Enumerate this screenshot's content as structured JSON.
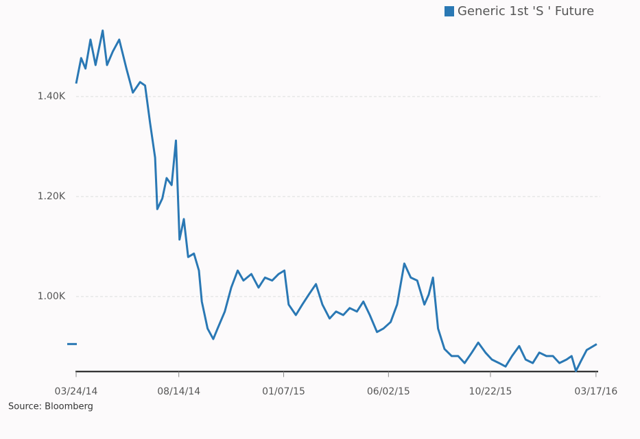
{
  "chart_data": {
    "type": "line",
    "source": "Source: Bloomberg",
    "x": [
      "2014-03-24",
      "2014-03-31",
      "2014-04-06",
      "2014-04-13",
      "2014-04-20",
      "2014-04-30",
      "2014-05-06",
      "2014-05-14",
      "2014-05-23",
      "2014-06-02",
      "2014-06-11",
      "2014-06-21",
      "2014-06-28",
      "2014-07-05",
      "2014-07-12",
      "2014-07-15",
      "2014-07-22",
      "2014-07-28",
      "2014-08-04",
      "2014-08-10",
      "2014-08-15",
      "2014-08-21",
      "2014-08-27",
      "2014-09-04",
      "2014-09-11",
      "2014-09-15",
      "2014-09-23",
      "2014-10-01",
      "2014-10-07",
      "2014-10-17",
      "2014-10-26",
      "2014-11-04",
      "2014-11-12",
      "2014-11-23",
      "2014-12-03",
      "2014-12-12",
      "2014-12-22",
      "2014-12-31",
      "2015-01-08",
      "2015-01-14",
      "2015-01-24",
      "2015-02-02",
      "2015-02-11",
      "2015-02-21",
      "2015-03-02",
      "2015-03-12",
      "2015-03-21",
      "2015-03-31",
      "2015-04-09",
      "2015-04-19",
      "2015-04-28",
      "2015-05-07",
      "2015-05-17",
      "2015-05-26",
      "2015-06-05",
      "2015-06-14",
      "2015-06-24",
      "2015-07-03",
      "2015-07-12",
      "2015-07-22",
      "2015-07-28",
      "2015-08-03",
      "2015-08-10",
      "2015-08-19",
      "2015-08-29",
      "2015-09-07",
      "2015-09-16",
      "2015-09-26",
      "2015-10-05",
      "2015-10-15",
      "2015-10-24",
      "2015-11-03",
      "2015-11-12",
      "2015-11-21",
      "2015-12-01",
      "2015-12-10",
      "2015-12-20",
      "2015-12-29",
      "2016-01-08",
      "2016-01-17",
      "2016-01-26",
      "2016-02-05",
      "2016-02-12",
      "2016-02-18",
      "2016-02-25",
      "2016-03-04",
      "2016-03-18"
    ],
    "series": [
      {
        "name": "Generic 1st 'S ' Future",
        "color": "#2a78b4",
        "values": [
          1426,
          1477,
          1456,
          1514,
          1463,
          1532,
          1463,
          1490,
          1514,
          1456,
          1408,
          1429,
          1422,
          1347,
          1278,
          1175,
          1196,
          1237,
          1223,
          1312,
          1114,
          1155,
          1079,
          1086,
          1052,
          990,
          936,
          915,
          936,
          970,
          1018,
          1052,
          1032,
          1045,
          1018,
          1038,
          1032,
          1045,
          1052,
          984,
          963,
          984,
          1004,
          1025,
          984,
          956,
          970,
          963,
          977,
          970,
          990,
          963,
          929,
          936,
          949,
          984,
          1066,
          1038,
          1032,
          984,
          1004,
          1038,
          936,
          895,
          881,
          881,
          867,
          888,
          908,
          888,
          874,
          867,
          860,
          881,
          901,
          874,
          867,
          888,
          881,
          881,
          867,
          874,
          881,
          851,
          871,
          893,
          905
        ]
      }
    ],
    "xlim": [
      "2014-03-24",
      "2016-03-20"
    ],
    "xticks": [
      {
        "value": "2014-03-24",
        "label": "03/24/14"
      },
      {
        "value": "2014-08-14",
        "label": "08/14/14"
      },
      {
        "value": "2015-01-07",
        "label": "01/07/15"
      },
      {
        "value": "2015-06-02",
        "label": "06/02/15"
      },
      {
        "value": "2015-10-22",
        "label": "10/22/15"
      },
      {
        "value": "2016-03-17",
        "label": "03/17/16"
      }
    ],
    "ylim": [
      850,
      1550
    ],
    "yticks": [
      {
        "value": 1000,
        "label": "1.00K"
      },
      {
        "value": 1200,
        "label": "1.20K"
      },
      {
        "value": 1400,
        "label": "1.40K"
      }
    ],
    "grid": true
  }
}
